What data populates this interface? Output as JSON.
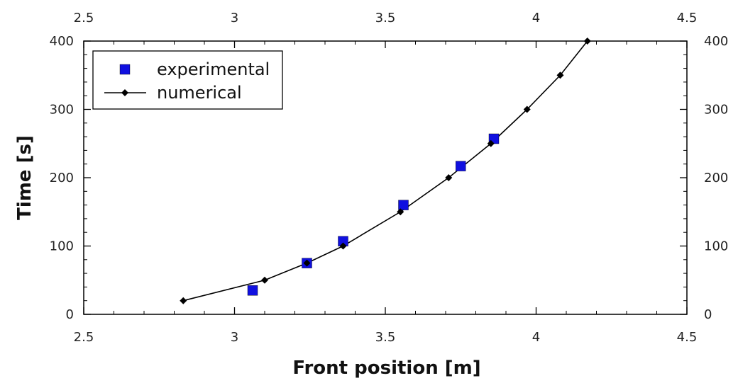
{
  "chart_data": {
    "type": "scatter",
    "xlabel": "Front position [m]",
    "ylabel": "Time [s]",
    "xlim": [
      2.5,
      4.5
    ],
    "ylim": [
      0,
      400
    ],
    "x_ticks": [
      2.5,
      3,
      3.5,
      4,
      4.5
    ],
    "x_tick_labels": [
      "2.5",
      "3",
      "3.5",
      "4",
      "4.5"
    ],
    "y_ticks": [
      0,
      100,
      200,
      300,
      400
    ],
    "y_tick_labels": [
      "0",
      "100",
      "200",
      "300",
      "400"
    ],
    "grid": false,
    "legend_position": "top-left",
    "series": [
      {
        "name": "experimental",
        "marker": "square",
        "line": false,
        "color": "#1010e0",
        "points": [
          {
            "x": 3.06,
            "y": 35
          },
          {
            "x": 3.24,
            "y": 75
          },
          {
            "x": 3.36,
            "y": 107
          },
          {
            "x": 3.56,
            "y": 160
          },
          {
            "x": 3.75,
            "y": 217
          },
          {
            "x": 3.86,
            "y": 257
          }
        ]
      },
      {
        "name": "numerical",
        "marker": "diamond",
        "line": true,
        "color": "#000000",
        "points": [
          {
            "x": 2.83,
            "y": 20
          },
          {
            "x": 3.1,
            "y": 50
          },
          {
            "x": 3.24,
            "y": 75
          },
          {
            "x": 3.36,
            "y": 100
          },
          {
            "x": 3.55,
            "y": 150
          },
          {
            "x": 3.71,
            "y": 200
          },
          {
            "x": 3.85,
            "y": 250
          },
          {
            "x": 3.97,
            "y": 300
          },
          {
            "x": 4.08,
            "y": 350
          },
          {
            "x": 4.17,
            "y": 400
          }
        ]
      }
    ]
  }
}
